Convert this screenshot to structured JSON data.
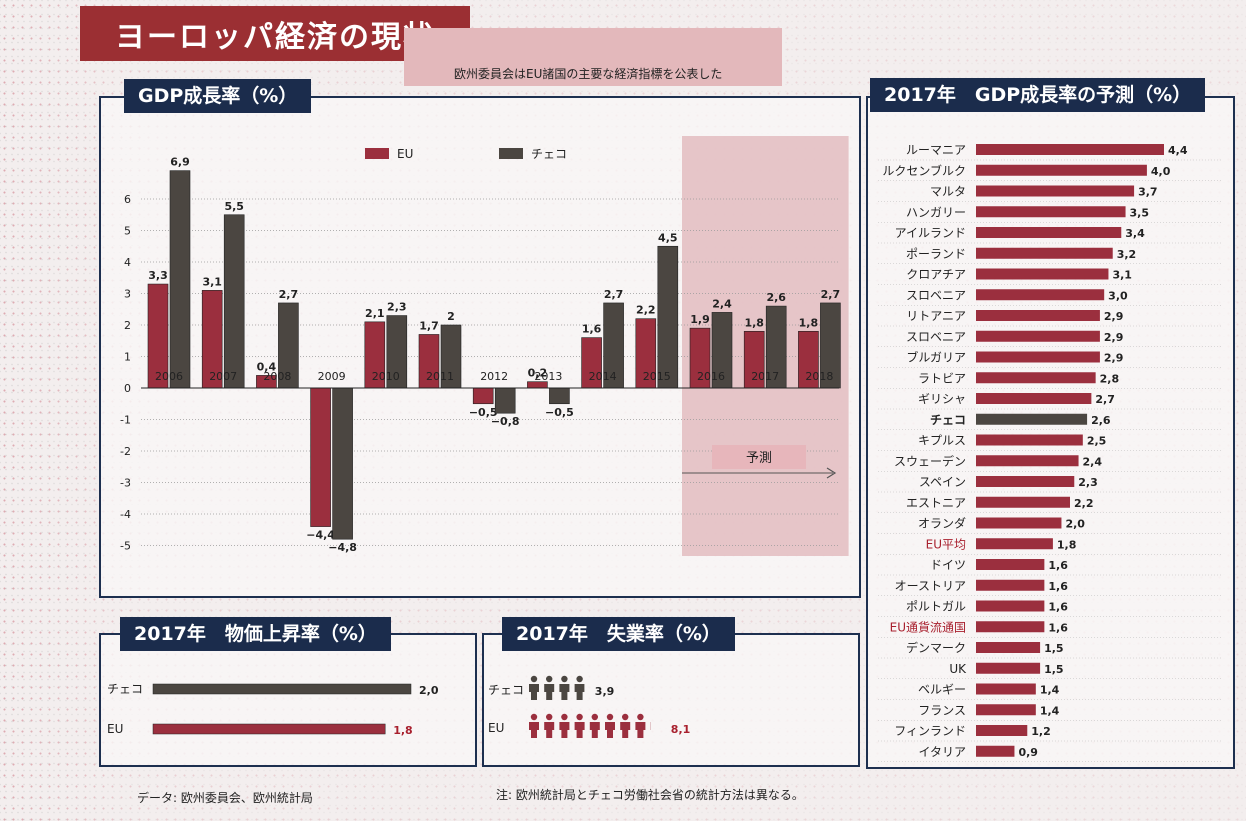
{
  "page": {
    "title": "ヨーロッパ経済の現状",
    "subtitle": "欧州委員会はEU諸国の主要な経済指標を公表した",
    "source": "データ: 欧州委員会、欧州統計局",
    "note": "注: 欧州統計局とチェコ労働社会省の統計方法は異なる。"
  },
  "colors": {
    "eu": "#9b2f3e",
    "czech": "#4b4641",
    "panel_title_bg": "#1b2c4c",
    "forecast_bg": "#e3bcc0"
  },
  "chart_data": [
    {
      "type": "bar",
      "title": "GDP成長率（%）",
      "categories": [
        "2006",
        "2007",
        "2008",
        "2009",
        "2010",
        "2011",
        "2012",
        "2013",
        "2014",
        "2015",
        "2016",
        "2017",
        "2018"
      ],
      "series": [
        {
          "name": "EU",
          "values": [
            3.3,
            3.1,
            0.4,
            -4.4,
            2.1,
            1.7,
            -0.5,
            0.2,
            1.6,
            2.2,
            1.9,
            1.8,
            1.8
          ]
        },
        {
          "name": "チェコ",
          "values": [
            6.9,
            5.5,
            2.7,
            -4.8,
            2.3,
            2,
            -0.8,
            -0.5,
            2.7,
            4.5,
            2.4,
            2.6,
            2.7
          ]
        }
      ],
      "value_labels": {
        "EU": [
          "3,3",
          "3,1",
          "0,4",
          "−4,4",
          "2,1",
          "1,7",
          "−0,5",
          "0,2",
          "1,6",
          "2,2",
          "1,9",
          "1,8",
          "1,8"
        ],
        "チェコ": [
          "6,9",
          "5,5",
          "2,7",
          "−4,8",
          "2,3",
          "2",
          "−0,8",
          "−0,5",
          "2,7",
          "4,5",
          "2,4",
          "2,6",
          "2,7"
        ]
      },
      "yticks": [
        "6",
        "5",
        "4",
        "3",
        "2",
        "1",
        "0",
        "-1",
        "-2",
        "-3",
        "-4",
        "-5"
      ],
      "ylim": [
        -5.5,
        7
      ],
      "forecast": {
        "label": "予測",
        "from": "2016",
        "to": "2018"
      },
      "legend": "top"
    },
    {
      "type": "bar",
      "orientation": "horizontal",
      "title": "2017年　GDP成長率の予測（%）",
      "categories": [
        "ルーマニア",
        "ルクセンブルク",
        "マルタ",
        "ハンガリー",
        "アイルランド",
        "ポーランド",
        "クロアチア",
        "スロベニア",
        "リトアニア",
        "スロベニア",
        "ブルガリア",
        "ラトビア",
        "ギリシャ",
        "チェコ",
        "キプルス",
        "スウェーデン",
        "スペイン",
        "エストニア",
        "オランダ",
        "EU平均",
        "ドイツ",
        "オーストリア",
        "ポルトガル",
        "EU通貨流通国",
        "デンマーク",
        "UK",
        "ベルギー",
        "フランス",
        "フィンランド",
        "イタリア"
      ],
      "values": [
        4.4,
        4.0,
        3.7,
        3.5,
        3.4,
        3.2,
        3.1,
        3.0,
        2.9,
        2.9,
        2.9,
        2.8,
        2.7,
        2.6,
        2.5,
        2.4,
        2.3,
        2.2,
        2.0,
        1.8,
        1.6,
        1.6,
        1.6,
        1.6,
        1.5,
        1.5,
        1.4,
        1.4,
        1.2,
        0.9
      ],
      "value_labels": [
        "4,4",
        "4,0",
        "3,7",
        "3,5",
        "3,4",
        "3,2",
        "3,1",
        "3,0",
        "2,9",
        "2,9",
        "2,9",
        "2,8",
        "2,7",
        "2,6",
        "2,5",
        "2,4",
        "2,3",
        "2,2",
        "2,0",
        "1,8",
        "1,6",
        "1,6",
        "1,6",
        "1,6",
        "1,5",
        "1,5",
        "1,4",
        "1,4",
        "1,2",
        "0,9"
      ],
      "highlight": {
        "チェコ": "czech",
        "EU平均": "eu-label",
        "EU通貨流通国": "eu-label"
      },
      "xlim": [
        0,
        4.4
      ]
    },
    {
      "type": "bar",
      "orientation": "horizontal",
      "title": "2017年　物価上昇率（%）",
      "categories": [
        "チェコ",
        "EU"
      ],
      "values": [
        2.0,
        1.8
      ],
      "value_labels": [
        "2,0",
        "1,8"
      ],
      "xlim": [
        0,
        2.0
      ]
    },
    {
      "type": "pictogram",
      "title": "2017年　失業率（%）",
      "categories": [
        "チェコ",
        "EU"
      ],
      "values": [
        3.9,
        8.1
      ],
      "value_labels": [
        "3,9",
        "8,1"
      ]
    }
  ]
}
